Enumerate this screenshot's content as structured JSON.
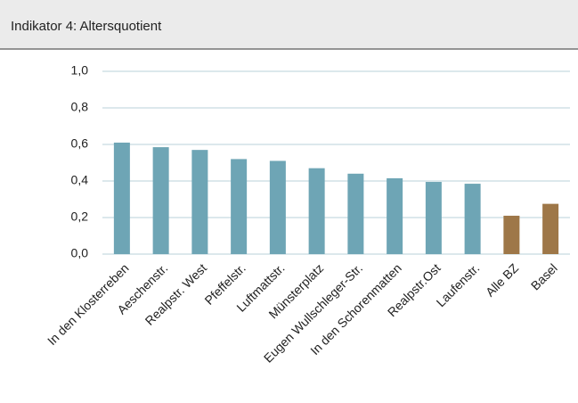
{
  "chart_data": {
    "type": "bar",
    "title": "Indikator 4: Altersquotient",
    "categories": [
      "In den Klosterreben",
      "Aeschenstr.",
      "Realpstr. West",
      "Pfeffelstr.",
      "Luftmattstr.",
      "Münsterplatz",
      "Eugen Wullschleger-Str.",
      "In den Schorenmatten",
      "Realpstr.Ost",
      "Laufenstr.",
      "Alle BZ",
      "Basel"
    ],
    "values": [
      0.61,
      0.585,
      0.57,
      0.52,
      0.51,
      0.47,
      0.44,
      0.415,
      0.395,
      0.385,
      0.21,
      0.275
    ],
    "colors": [
      "#6ea5b5",
      "#6ea5b5",
      "#6ea5b5",
      "#6ea5b5",
      "#6ea5b5",
      "#6ea5b5",
      "#6ea5b5",
      "#6ea5b5",
      "#6ea5b5",
      "#6ea5b5",
      "#9e7748",
      "#9e7748"
    ],
    "ylim": [
      0,
      1
    ],
    "yticks": [
      {
        "value": 0,
        "label": "0,0"
      },
      {
        "value": 0.2,
        "label": "0,2"
      },
      {
        "value": 0.4,
        "label": "0,4"
      },
      {
        "value": 0.6,
        "label": "0,6"
      },
      {
        "value": 0.8,
        "label": "0,8"
      },
      {
        "value": 1,
        "label": "1,0"
      }
    ],
    "grid": true
  }
}
